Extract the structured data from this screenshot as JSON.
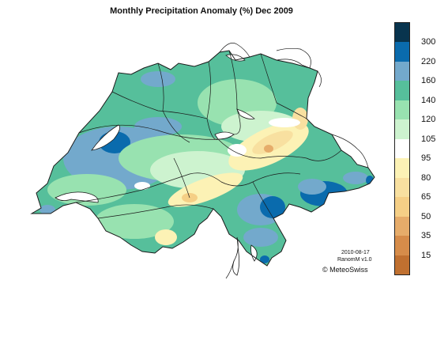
{
  "title": "Monthly Precipitation Anomaly (%) Dec 2009",
  "legend": {
    "colors": [
      "#08344e",
      "#0a6bad",
      "#73a9cc",
      "#56bf9b",
      "#98e2b0",
      "#cdf3cf",
      "#ffffff",
      "#fcf2b5",
      "#f8e0a0",
      "#f5cf86",
      "#e6ac6a",
      "#d68c4a",
      "#c07030"
    ],
    "ticks": [
      "300",
      "220",
      "160",
      "140",
      "120",
      "105",
      "95",
      "80",
      "65",
      "50",
      "35",
      "15"
    ]
  },
  "credits": {
    "date": "2010-08-17",
    "version": "RanomM v1.0",
    "copyright": "© MeteoSwiss"
  },
  "palette": {
    "border": "#1a1a1a",
    "lakes": "#ffffff"
  }
}
